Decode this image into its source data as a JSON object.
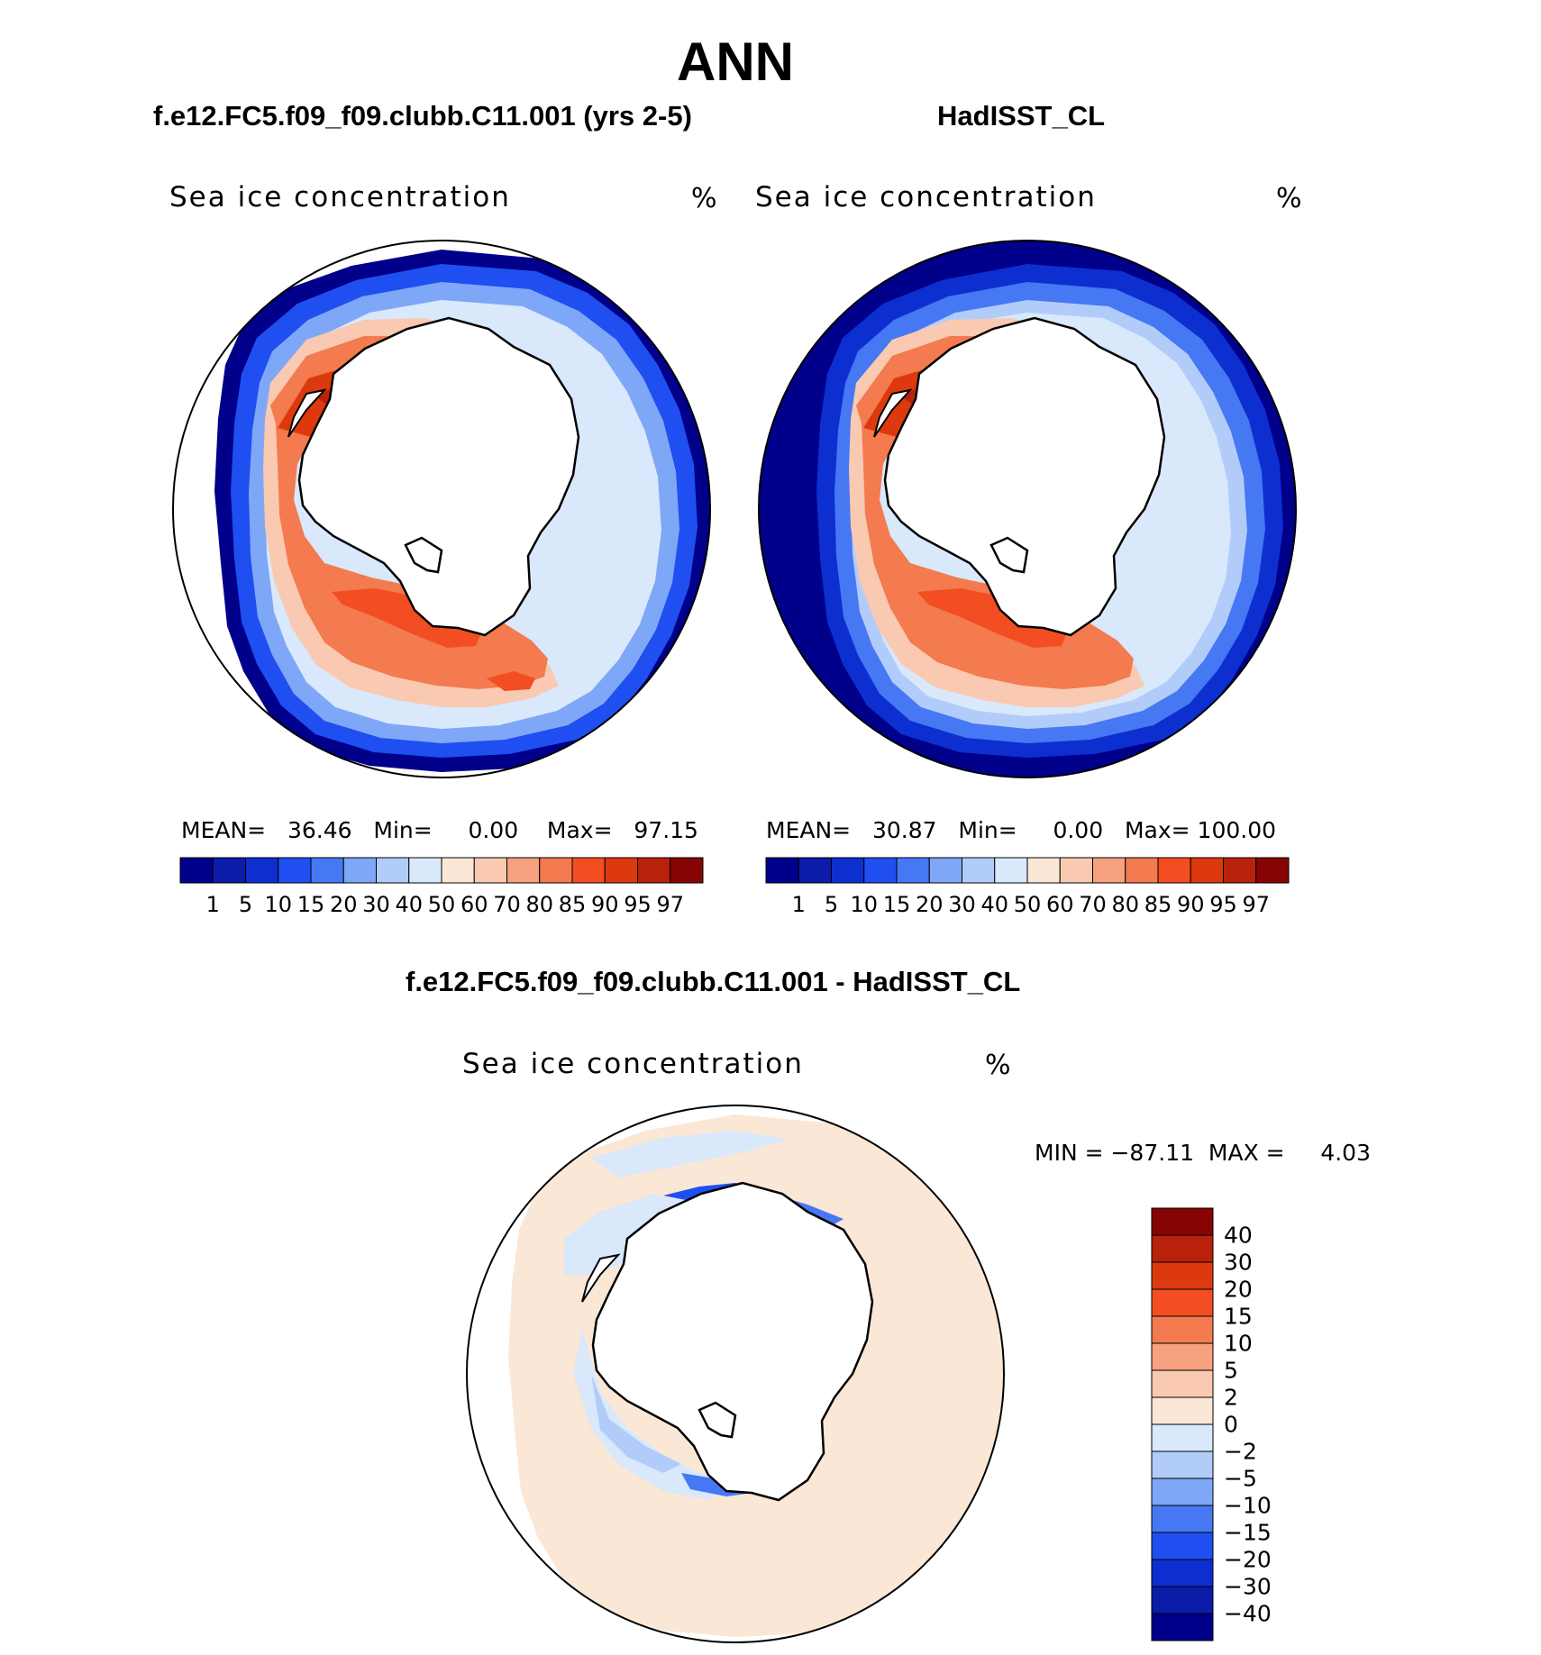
{
  "figure": {
    "title": "ANN",
    "left_panel": {
      "case_title": "f.e12.FC5.f09_f09.clubb.C11.001 (yrs 2-5)",
      "var_label": "Sea ice concentration",
      "unit": "%",
      "stats": {
        "mean_label": "MEAN=",
        "mean": "36.46",
        "min_label": "Min=",
        "min": "0.00",
        "max_label": "Max=",
        "max": "97.15"
      }
    },
    "right_panel": {
      "case_title": "HadISST_CL",
      "var_label": "Sea ice concentration",
      "unit": "%",
      "stats": {
        "mean_label": "MEAN=",
        "mean": "30.87",
        "min_label": "Min=",
        "min": "0.00",
        "max_label": "Max=",
        "max": "100.00"
      }
    },
    "diff_panel": {
      "case_title": "f.e12.FC5.f09_f09.clubb.C11.001 - HadISST_CL",
      "var_label": "Sea ice concentration",
      "unit": "%",
      "minmax": "MIN = −87.11  MAX =     4.03"
    },
    "colorbar_abs": {
      "labels": [
        "1",
        "5",
        "10",
        "15",
        "20",
        "30",
        "40",
        "50",
        "60",
        "70",
        "80",
        "85",
        "90",
        "95",
        "97"
      ],
      "colors": [
        "#00008b",
        "#0a1ca8",
        "#0d2fd0",
        "#1f4ff0",
        "#4678f4",
        "#7fa7f7",
        "#b2ccfa",
        "#d9e8fb",
        "#fbe7d6",
        "#f9c9b1",
        "#f7a17f",
        "#f47a4f",
        "#f24e21",
        "#dc3a0e",
        "#b8210a",
        "#870404"
      ]
    },
    "colorbar_diff": {
      "labels": [
        "40",
        "30",
        "20",
        "15",
        "10",
        "5",
        "2",
        "0",
        "−2",
        "−5",
        "−10",
        "−15",
        "−20",
        "−30",
        "−40"
      ],
      "colors": [
        "#870404",
        "#b8210a",
        "#dc3a0e",
        "#f24e21",
        "#f47a4f",
        "#f7a17f",
        "#f9c9b1",
        "#fbe7d6",
        "#d9e8fb",
        "#b2ccfa",
        "#7fa7f7",
        "#4678f4",
        "#1f4ff0",
        "#0d2fd0",
        "#0a1ca8",
        "#00008b"
      ]
    }
  }
}
